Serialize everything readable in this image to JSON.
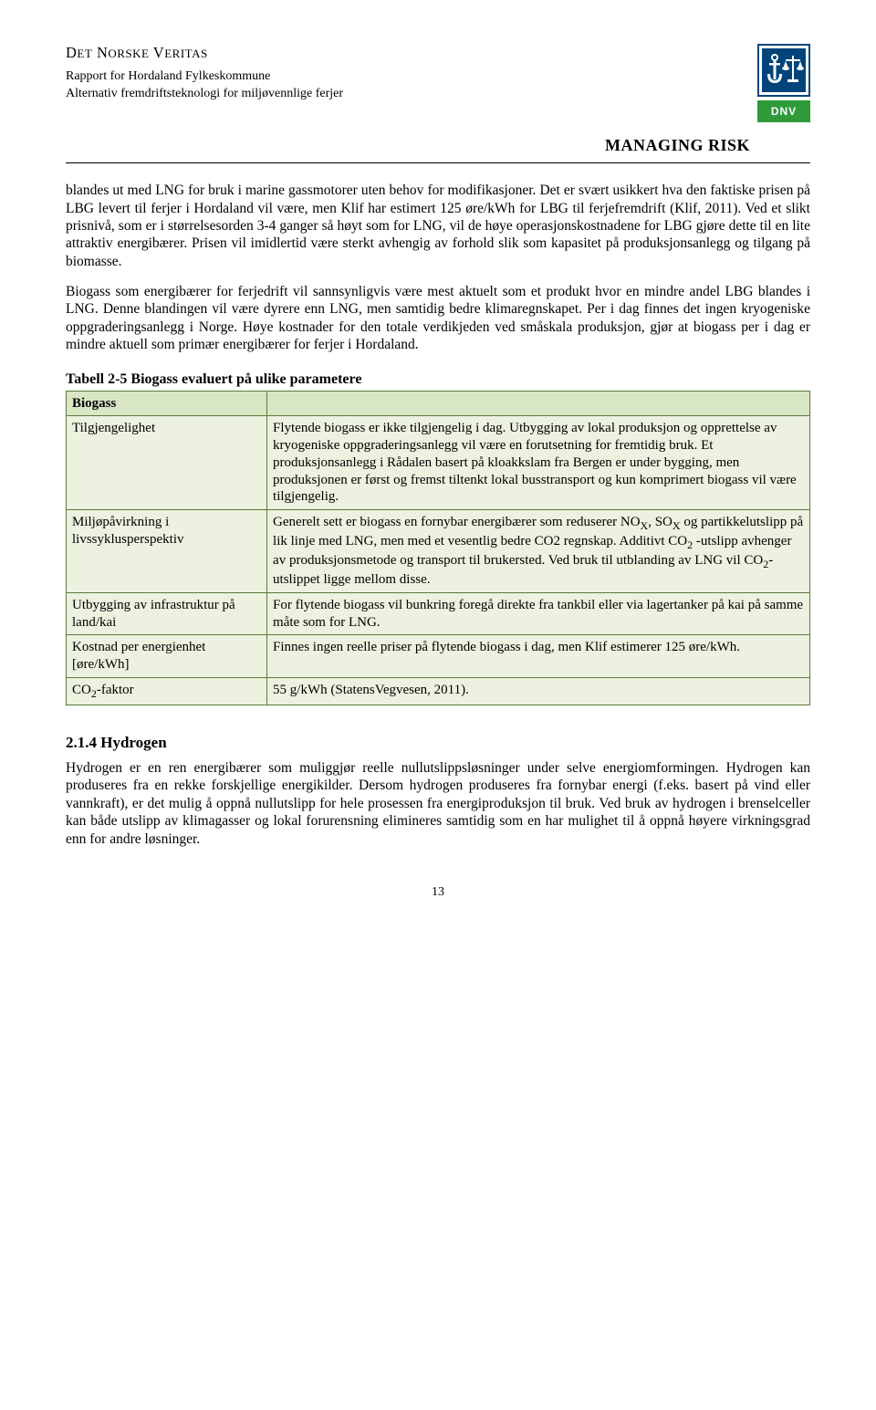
{
  "header": {
    "org_name_html": "D<span style='font-size:13px'>ET</span> N<span style='font-size:13px'>ORSKE</span> V<span style='font-size:13px'>ERITAS</span>",
    "report_line1": "Rapport for Hordaland Fylkeskommune",
    "report_line2": "Alternativ fremdriftsteknologi for miljøvennlige ferjer",
    "managing": "MANAGING RISK",
    "logo_text": "DNV"
  },
  "paragraphs": {
    "p1": "blandes ut med LNG for bruk i marine gassmotorer uten behov for modifikasjoner. Det er svært usikkert hva den faktiske prisen på LBG levert til ferjer i Hordaland vil være, men Klif har estimert 125 øre/kWh for LBG til ferjefremdrift (Klif, 2011). Ved et slikt prisnivå, som er i størrelsesorden 3-4 ganger så høyt som for LNG, vil de høye operasjonskostnadene for LBG gjøre dette til en lite attraktiv energibærer. Prisen vil imidlertid være sterkt avhengig av forhold slik som kapasitet på produksjonsanlegg og tilgang på biomasse.",
    "p2": "Biogass som energibærer for ferjedrift vil sannsynligvis være mest aktuelt som et produkt hvor en mindre andel LBG blandes i LNG. Denne blandingen vil være dyrere enn LNG, men samtidig bedre klimaregnskapet. Per i dag finnes det ingen kryogeniske oppgraderingsanlegg i Norge. Høye kostnader for den totale verdikjeden ved småskala produksjon, gjør at biogass per i dag er mindre aktuell som primær energibærer for ferjer i Hordaland."
  },
  "table": {
    "title": "Tabell 2-5 Biogass evaluert på ulike parametere",
    "header_label": "Biogass",
    "rows": [
      {
        "label": "Tilgjengelighet",
        "value": "Flytende biogass er ikke tilgjengelig i dag. Utbygging av lokal produksjon og opprettelse av kryogeniske oppgraderingsanlegg vil være en forutsetning for fremtidig bruk. Et produksjonsanlegg i Rådalen basert på kloakkslam fra Bergen er under bygging, men produksjonen er først og fremst tiltenkt lokal busstransport og kun komprimert biogass vil være tilgjengelig."
      },
      {
        "label": "Miljøpåvirkning i livssyklusperspektiv",
        "value_html": "Generelt sett er biogass en fornybar energibærer som reduserer NO<span class='sub'>X</span>, SO<span class='sub'>X</span> og partikkelutslipp på lik linje med LNG, men med et vesentlig bedre CO2 regnskap. Additivt CO<span class='sub'>2</span> -utslipp avhenger av produksjonsmetode og transport til brukersted. Ved bruk til utblanding av LNG vil CO<span class='sub'>2</span>-utslippet ligge mellom disse."
      },
      {
        "label": "Utbygging av infrastruktur på land/kai",
        "value": "For flytende biogass vil bunkring foregå direkte fra tankbil eller via lagertanker på kai på samme måte som for LNG."
      },
      {
        "label": "Kostnad per energienhet [øre/kWh]",
        "value": "Finnes ingen reelle priser på flytende biogass i dag, men Klif estimerer 125 øre/kWh."
      },
      {
        "label_html": "CO<span class='sub'>2</span>-faktor",
        "value": "55 g/kWh (StatensVegvesen, 2011)."
      }
    ]
  },
  "section": {
    "heading": "2.1.4   Hydrogen",
    "body": "Hydrogen er en ren energibærer som muliggjør reelle nullutslippsløsninger under selve energiomformingen. Hydrogen kan produseres fra en rekke forskjellige energikilder. Dersom hydrogen produseres fra fornybar energi (f.eks. basert på vind eller vannkraft), er det mulig å oppnå nullutslipp for hele prosessen fra energiproduksjon til bruk. Ved bruk av hydrogen i brenselceller kan både utslipp av klimagasser og lokal forurensning elimineres samtidig som en har mulighet til å oppnå høyere virkningsgrad enn for andre løsninger."
  },
  "page_number": "13",
  "colors": {
    "table_border": "#5b7a3a",
    "table_header_bg": "#d9e6c4",
    "table_row_bg": "#ecf2df",
    "logo_blue": "#00447a",
    "logo_green": "#2e9a3a"
  }
}
